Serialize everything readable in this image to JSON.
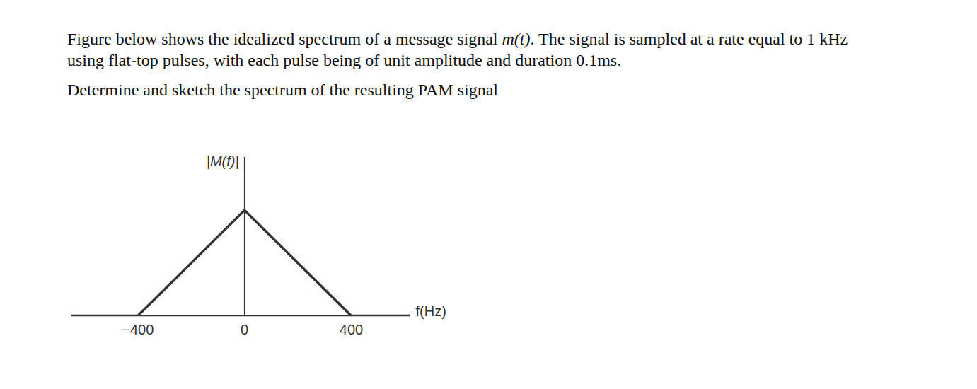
{
  "problem": {
    "lines": [
      [
        {
          "text": "Figure below shows the idealized spectrum of a message signal "
        },
        {
          "text": "m(t)",
          "italic": true
        },
        {
          "text": ". The signal is sampled at a rate equal to 1 kHz"
        }
      ],
      [
        {
          "text": "using flat-top pulses, with each pulse being of unit amplitude and duration 0.1ms."
        }
      ],
      [
        {
          "text": "Determine and sketch the spectrum of the resulting PAM signal"
        }
      ]
    ]
  },
  "chart_data": {
    "type": "line",
    "x_label": "f(Hz)",
    "y_label": "|M(f)|",
    "x": [
      -650,
      -400,
      0,
      400,
      620
    ],
    "values": [
      0,
      0,
      1,
      0,
      0
    ],
    "color": "#333333",
    "xlim": [
      -650,
      620
    ],
    "xticks": [
      -400,
      0,
      400
    ],
    "ylim": [
      0,
      1.5
    ],
    "yticks": [],
    "tick_labels": "x",
    "grid": false
  }
}
